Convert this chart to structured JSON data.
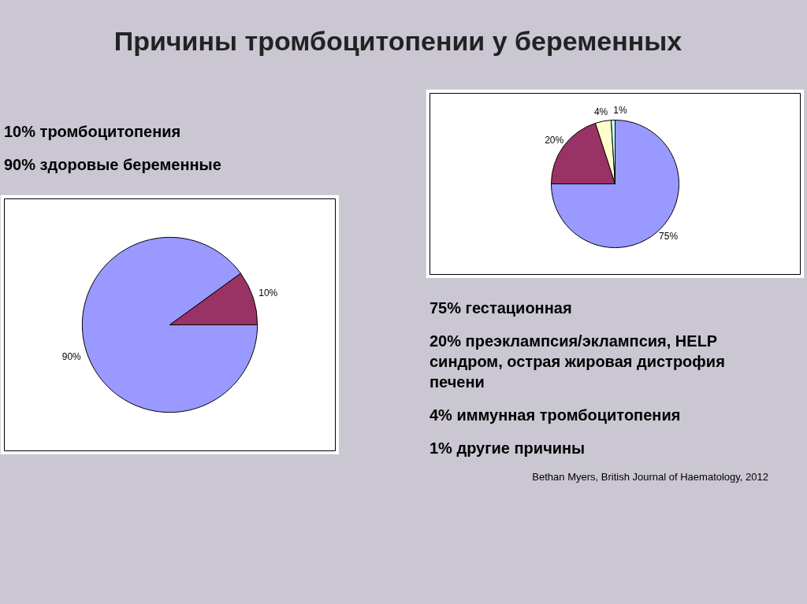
{
  "chart_data": [
    {
      "type": "pie",
      "title": "Причины тромбоцитопении у беременных",
      "categories": [
        null,
        null
      ],
      "values": [
        90,
        10
      ],
      "colors": [
        "#9999ff",
        "#993366"
      ],
      "value_labels": [
        "90%",
        "10%"
      ],
      "annotations": [
        "10% тромбоцитопения",
        "90% здоровые беременные"
      ]
    },
    {
      "type": "pie",
      "categories": [
        null,
        null,
        null,
        null
      ],
      "values": [
        75,
        20,
        4,
        1
      ],
      "colors": [
        "#9999ff",
        "#993366",
        "#ffffcc",
        "#ccffff"
      ],
      "value_labels": [
        "75%",
        "20%",
        "4%",
        "1%"
      ],
      "annotations": [
        "75% гестационная",
        "20% преэклампсия/эклампсия, HELP синдром, острая жировая дистрофия печени",
        "4% иммунная тромбоцитопения",
        "1% другие причины",
        "Bethan Myers, British Journal of Haematology, 2012"
      ]
    }
  ]
}
